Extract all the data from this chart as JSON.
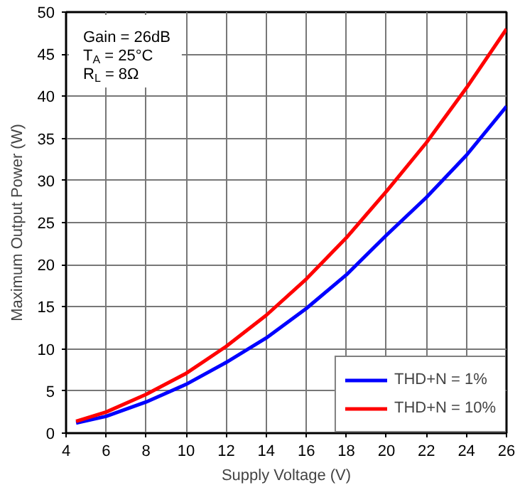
{
  "chart_data": {
    "type": "line",
    "xlabel": "Supply Voltage (V)",
    "ylabel": "Maximum Output Power (W)",
    "x": [
      4.5,
      6,
      8,
      10,
      12,
      14,
      16,
      18,
      20,
      22,
      24,
      26
    ],
    "series": [
      {
        "name": "THD+N = 1%",
        "color": "#0000ff",
        "values": [
          1.2,
          2.0,
          3.7,
          5.8,
          8.4,
          11.3,
          14.8,
          18.8,
          23.5,
          28.0,
          33.0,
          38.8
        ]
      },
      {
        "name": "THD+N = 10%",
        "color": "#ff0000",
        "values": [
          1.4,
          2.5,
          4.6,
          7.1,
          10.3,
          14.0,
          18.3,
          23.2,
          28.7,
          34.5,
          41.0,
          48.0
        ]
      }
    ],
    "xlim": [
      4,
      26
    ],
    "xticks": [
      4,
      6,
      8,
      10,
      12,
      14,
      16,
      18,
      20,
      22,
      24,
      26
    ],
    "ylim": [
      0,
      50
    ],
    "yticks": [
      0,
      5,
      10,
      15,
      20,
      25,
      30,
      35,
      40,
      45,
      50
    ],
    "annotations": [
      "Gain = 26dB",
      "T$_{A}$ = 25°C",
      "R$_{L}$ = 8Ω"
    ],
    "grid": true,
    "legend": "bottom right",
    "line_style": "solid",
    "marker": "none"
  }
}
